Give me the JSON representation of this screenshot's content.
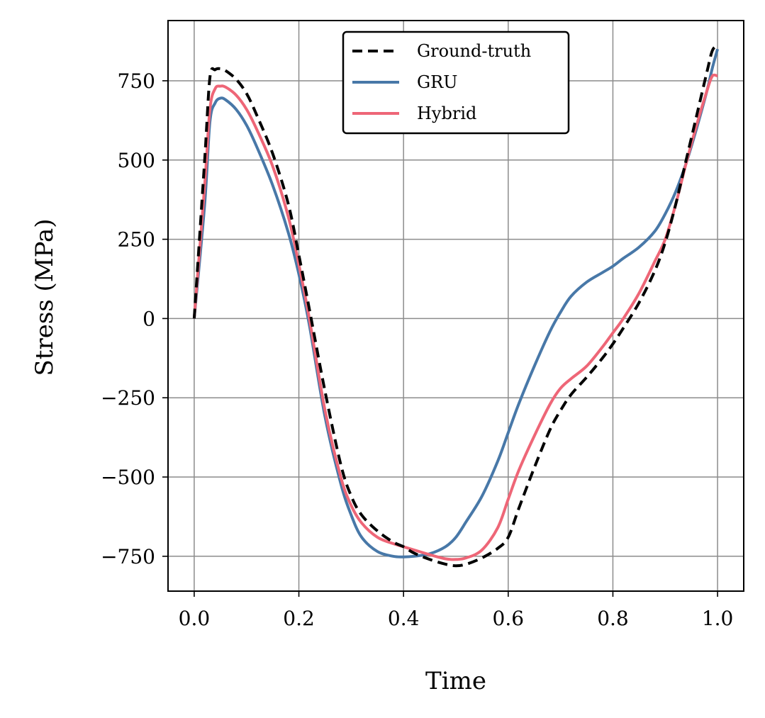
{
  "chart_data": {
    "type": "line",
    "title": "",
    "xlabel": "Time",
    "ylabel": "Stress (MPa)",
    "xlim": [
      -0.05,
      1.05
    ],
    "ylim": [
      -860,
      940
    ],
    "xticks": [
      0.0,
      0.2,
      0.4,
      0.6,
      0.8,
      1.0
    ],
    "xtick_labels": [
      "0.0",
      "0.2",
      "0.4",
      "0.6",
      "0.8",
      "1.0"
    ],
    "yticks": [
      750,
      500,
      250,
      0,
      -250,
      -500,
      -750
    ],
    "ytick_labels": [
      "750",
      "500",
      "250",
      "0",
      "−250",
      "−500",
      "−750"
    ],
    "grid": true,
    "legend_position": "top-center",
    "series": [
      {
        "name": "Ground-truth",
        "color": "#000000",
        "style": "dashed",
        "x": [
          0.0,
          0.02,
          0.03,
          0.04,
          0.05,
          0.06,
          0.08,
          0.1,
          0.12,
          0.15,
          0.18,
          0.2,
          0.22,
          0.25,
          0.28,
          0.3,
          0.32,
          0.35,
          0.38,
          0.4,
          0.42,
          0.45,
          0.48,
          0.5,
          0.52,
          0.55,
          0.58,
          0.6,
          0.62,
          0.65,
          0.68,
          0.7,
          0.72,
          0.75,
          0.78,
          0.8,
          0.82,
          0.85,
          0.88,
          0.9,
          0.92,
          0.94,
          0.96,
          0.98,
          0.99,
          1.0
        ],
        "y": [
          0,
          500,
          760,
          785,
          788,
          782,
          755,
          710,
          640,
          520,
          360,
          200,
          30,
          -230,
          -460,
          -560,
          -620,
          -670,
          -705,
          -720,
          -740,
          -760,
          -775,
          -780,
          -775,
          -755,
          -725,
          -690,
          -600,
          -470,
          -350,
          -290,
          -240,
          -185,
          -125,
          -80,
          -30,
          50,
          150,
          240,
          360,
          500,
          640,
          780,
          845,
          862
        ]
      },
      {
        "name": "GRU",
        "color": "#4878a8",
        "style": "solid",
        "x": [
          0.0,
          0.02,
          0.03,
          0.04,
          0.05,
          0.06,
          0.08,
          0.1,
          0.12,
          0.15,
          0.18,
          0.2,
          0.22,
          0.25,
          0.28,
          0.3,
          0.32,
          0.35,
          0.38,
          0.4,
          0.42,
          0.45,
          0.48,
          0.5,
          0.52,
          0.55,
          0.58,
          0.6,
          0.62,
          0.65,
          0.68,
          0.7,
          0.72,
          0.75,
          0.78,
          0.8,
          0.82,
          0.85,
          0.88,
          0.9,
          0.92,
          0.94,
          0.96,
          0.98,
          0.99,
          1.0
        ],
        "y": [
          0,
          360,
          620,
          680,
          695,
          690,
          660,
          610,
          540,
          420,
          270,
          140,
          -20,
          -310,
          -520,
          -620,
          -690,
          -735,
          -750,
          -752,
          -750,
          -742,
          -720,
          -690,
          -640,
          -560,
          -450,
          -360,
          -270,
          -150,
          -40,
          20,
          70,
          115,
          145,
          165,
          190,
          225,
          275,
          330,
          400,
          490,
          600,
          720,
          790,
          850
        ]
      },
      {
        "name": "Hybrid",
        "color": "#ee6677",
        "style": "solid",
        "x": [
          0.0,
          0.02,
          0.03,
          0.04,
          0.05,
          0.06,
          0.08,
          0.1,
          0.12,
          0.15,
          0.18,
          0.2,
          0.22,
          0.25,
          0.28,
          0.3,
          0.32,
          0.35,
          0.38,
          0.4,
          0.42,
          0.45,
          0.48,
          0.5,
          0.52,
          0.55,
          0.58,
          0.6,
          0.62,
          0.65,
          0.68,
          0.7,
          0.72,
          0.75,
          0.78,
          0.8,
          0.82,
          0.85,
          0.88,
          0.9,
          0.92,
          0.94,
          0.96,
          0.98,
          0.99,
          1.0
        ],
        "y": [
          0,
          420,
          660,
          725,
          733,
          730,
          705,
          660,
          595,
          480,
          320,
          170,
          0,
          -290,
          -500,
          -590,
          -645,
          -690,
          -710,
          -720,
          -730,
          -745,
          -758,
          -760,
          -755,
          -730,
          -660,
          -570,
          -480,
          -370,
          -270,
          -220,
          -190,
          -150,
          -90,
          -45,
          0,
          80,
          180,
          250,
          360,
          490,
          610,
          720,
          765,
          765
        ]
      }
    ]
  }
}
